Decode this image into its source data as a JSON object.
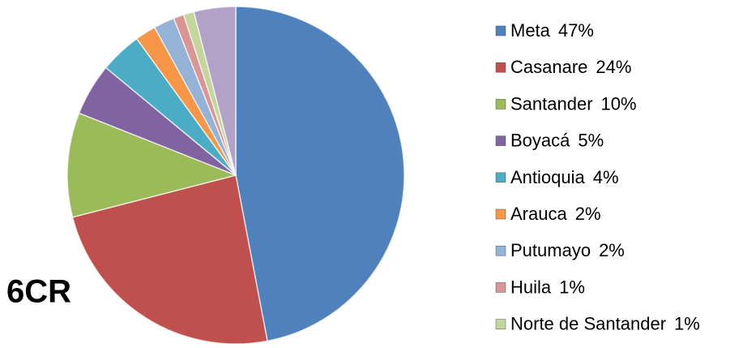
{
  "chart_data": {
    "type": "pie",
    "annotation": "6CR",
    "categories": [
      "Meta",
      "Casanare",
      "Santander",
      "Boyacá",
      "Antioquia",
      "Arauca",
      "Putumayo",
      "Huila",
      "Norte de Santander",
      null
    ],
    "values": [
      47,
      24,
      10,
      5,
      4,
      2,
      2,
      1,
      1,
      4
    ],
    "value_labels": [
      "47%",
      "24%",
      "10%",
      "5%",
      "4%",
      "2%",
      "2%",
      "1%",
      "1%",
      null
    ],
    "colors": [
      "#4f81bd",
      "#c0504d",
      "#9bbb59",
      "#8064a2",
      "#4bacc6",
      "#f79646",
      "#95b3d7",
      "#d99694",
      "#c3d69b",
      "#b3a2c7"
    ],
    "legend": "right"
  }
}
